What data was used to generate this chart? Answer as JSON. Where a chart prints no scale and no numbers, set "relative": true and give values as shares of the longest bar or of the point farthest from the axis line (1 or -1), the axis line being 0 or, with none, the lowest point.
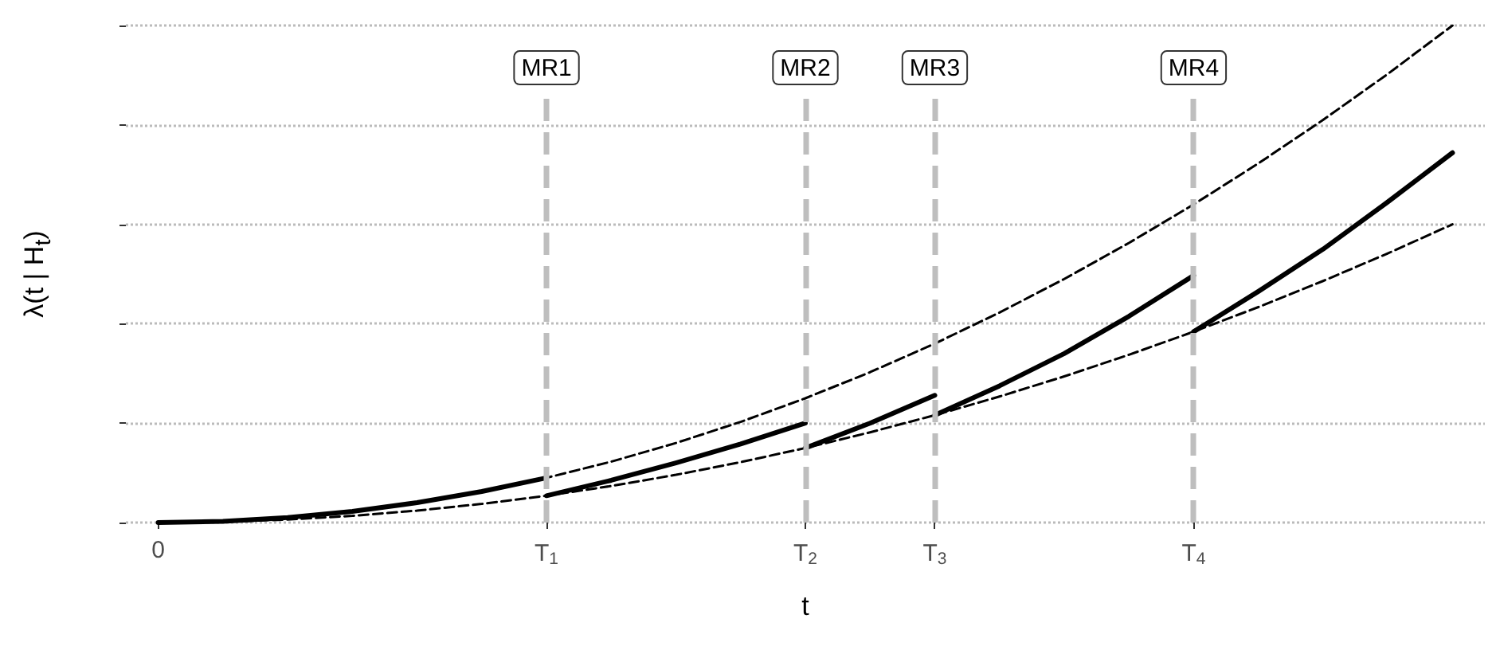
{
  "chart_data": {
    "type": "line",
    "xlabel": "t",
    "ylabel": "λ(t | H$_{t}$)",
    "relative": true,
    "grid": "y",
    "marker": "none",
    "categories": [
      "0",
      null,
      null,
      null,
      null,
      null,
      "T$_{1}$",
      null,
      null,
      null,
      "T$_{2}$",
      null,
      "T$_{3}$",
      null,
      null,
      null,
      "T$_{4}$",
      null,
      null,
      null,
      null
    ],
    "series": [
      {
        "color": "#000000",
        "line_style": "dashed",
        "values": [
          0,
          0.0025,
          0.01,
          0.0225,
          0.04,
          0.0625,
          0.09,
          0.1225,
          0.16,
          0.2025,
          0.25,
          0.3025,
          0.36,
          0.4225,
          0.49,
          0.5625,
          0.64,
          0.7225,
          0.81,
          0.9025,
          1
        ]
      },
      {
        "color": "#000000",
        "line_style": "dashed",
        "values": [
          0,
          0.0015,
          0.006,
          0.0135,
          0.024,
          0.0375,
          0.054,
          0.0735,
          0.096,
          0.1215,
          0.15,
          0.1815,
          0.216,
          0.2535,
          0.294,
          0.3375,
          0.384,
          0.4335,
          0.486,
          0.5415,
          0.6
        ]
      },
      {
        "color": "#000000",
        "line_style": "solid",
        "values": [
          0,
          0.0025,
          0.01,
          0.0225,
          0.04,
          0.0625,
          0.09,
          null,
          null,
          null,
          null,
          null,
          null,
          null,
          null,
          null,
          null,
          null,
          null,
          null,
          null
        ]
      },
      {
        "color": "#000000",
        "line_style": "solid",
        "values": [
          null,
          null,
          null,
          null,
          null,
          null,
          0.054,
          0.085,
          0.12,
          0.158,
          0.2,
          null,
          null,
          null,
          null,
          null,
          null,
          null,
          null,
          null,
          null
        ]
      },
      {
        "color": "#000000",
        "line_style": "solid",
        "values": [
          null,
          null,
          null,
          null,
          null,
          null,
          null,
          null,
          null,
          null,
          0.15,
          0.2,
          0.256,
          null,
          null,
          null,
          null,
          null,
          null,
          null,
          null
        ]
      },
      {
        "color": "#000000",
        "line_style": "solid",
        "values": [
          null,
          null,
          null,
          null,
          null,
          null,
          null,
          null,
          null,
          null,
          null,
          null,
          0.216,
          0.275,
          0.34,
          0.415,
          0.497,
          null,
          null,
          null,
          null
        ]
      },
      {
        "color": "#000000",
        "line_style": "solid",
        "values": [
          null,
          null,
          null,
          null,
          null,
          null,
          null,
          null,
          null,
          null,
          null,
          null,
          null,
          null,
          null,
          null,
          0.384,
          0.465,
          0.55,
          0.645,
          0.744
        ]
      }
    ],
    "ref_lines": [
      {
        "axis": "x",
        "value": "T$_{1}$",
        "label": "MR1",
        "color": "#bebebe",
        "line_style": "dashed"
      },
      {
        "axis": "x",
        "value": "T$_{2}$",
        "label": "MR2",
        "color": "#bebebe",
        "line_style": "dashed"
      },
      {
        "axis": "x",
        "value": "T$_{3}$",
        "label": "MR3",
        "color": "#bebebe",
        "line_style": "dashed"
      },
      {
        "axis": "x",
        "value": "T$_{4}$",
        "label": "MR4",
        "color": "#bebebe",
        "line_style": "dashed"
      }
    ]
  }
}
